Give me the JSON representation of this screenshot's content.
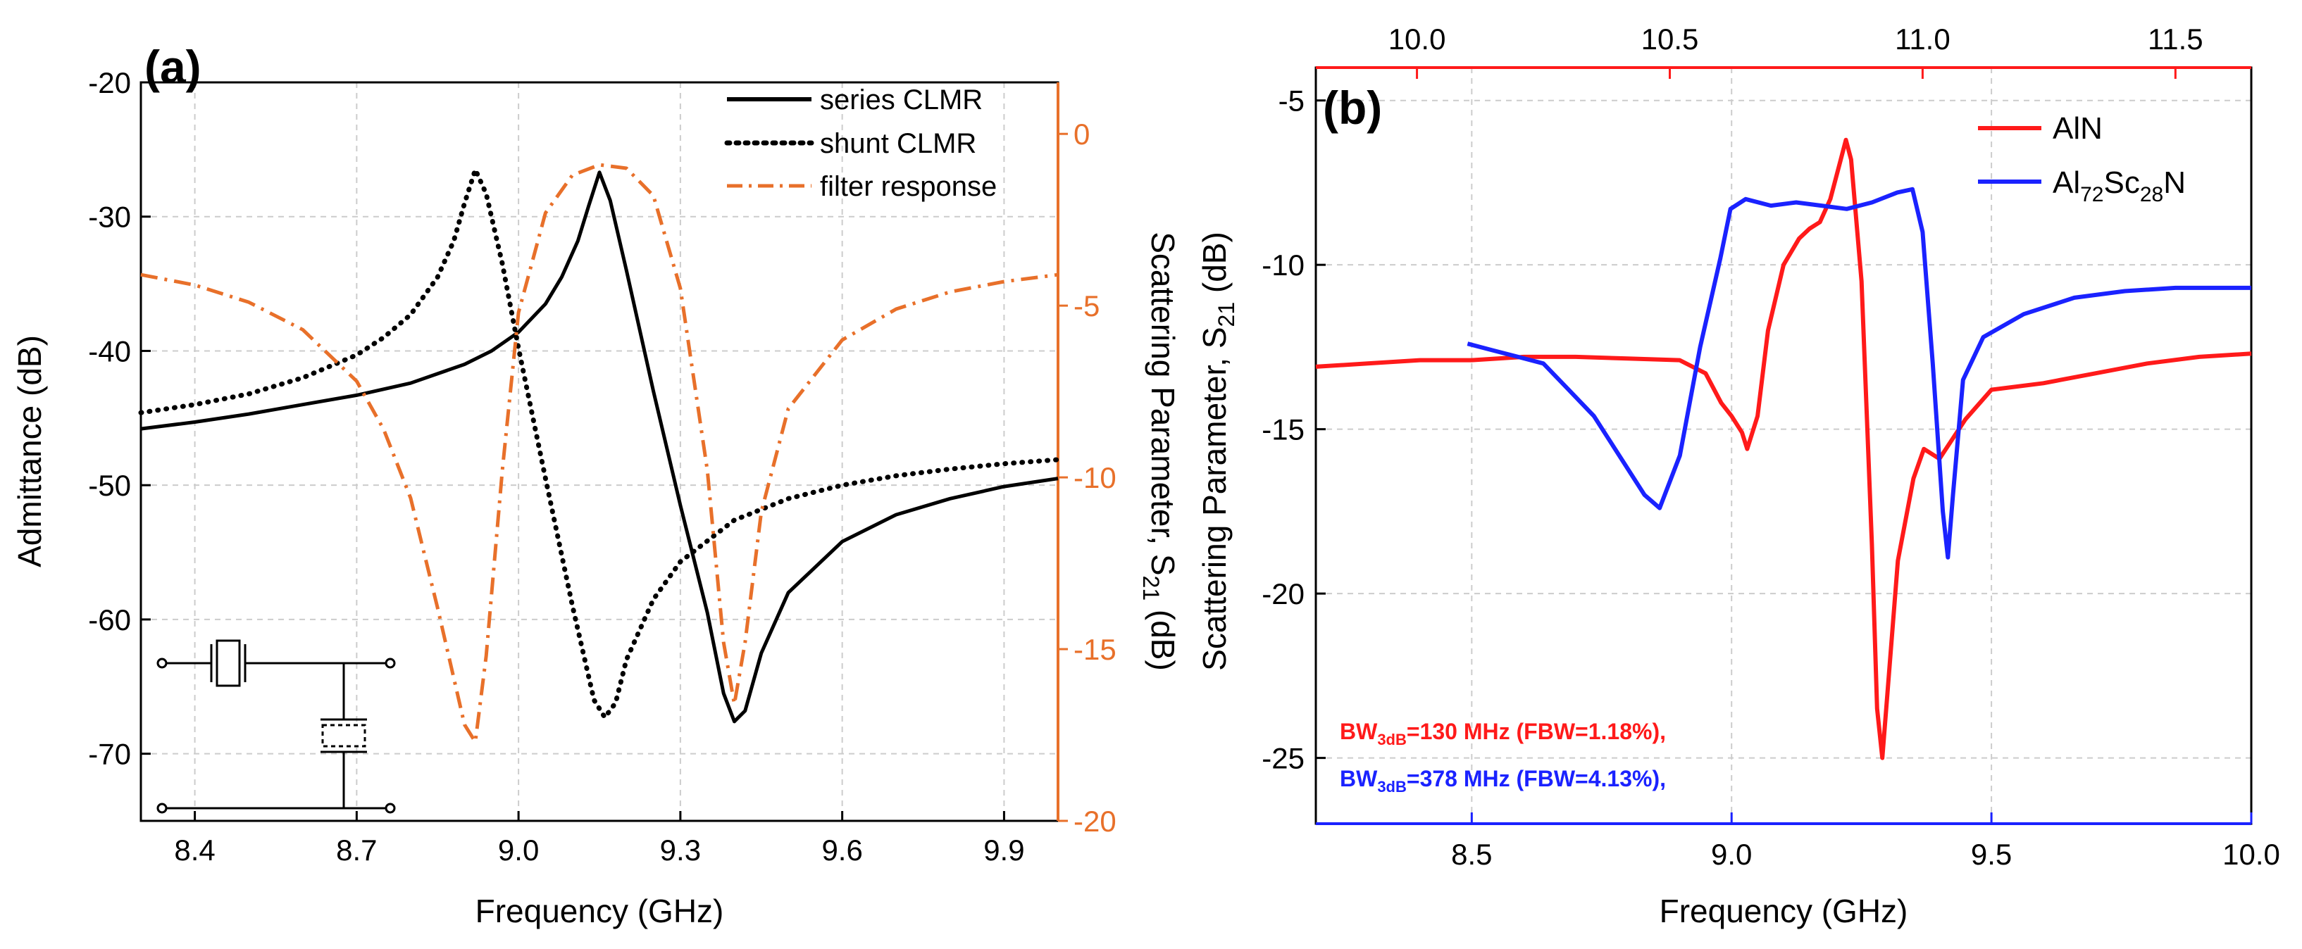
{
  "colors": {
    "series_clmr": "#000000",
    "shunt_clmr": "#000000",
    "filter_response": "#e8702a",
    "aln": "#ff1a1a",
    "alsc": "#1a22ff",
    "grid": "#cccccc"
  },
  "chart_data": [
    {
      "type": "line",
      "panel_label": "(a)",
      "xlabel": "Frequency (GHz)",
      "ylabel_left": "Admittance (dB)",
      "ylabel_right_main": "Scattering Parameter, S",
      "ylabel_right_sub": "21",
      "ylabel_right_tail": " (dB)",
      "xlim": [
        8.3,
        10.0
      ],
      "ylim_left": [
        -75,
        -20
      ],
      "ylim_right": [
        -20,
        1.5
      ],
      "x_ticks": [
        "8.4",
        "8.7",
        "9.0",
        "9.3",
        "9.6",
        "9.9"
      ],
      "y_ticks_left": [
        "-70",
        "-60",
        "-50",
        "-40",
        "-30",
        "-20"
      ],
      "y_ticks_right": [
        "-20",
        "-15",
        "-10",
        "-5",
        "0"
      ],
      "grid": true,
      "legend_position": "top-right",
      "series": [
        {
          "name": "series CLMR",
          "axis": "left",
          "style": "solid",
          "points": [
            [
              8.3,
              -45.8
            ],
            [
              8.4,
              -45.3
            ],
            [
              8.5,
              -44.7
            ],
            [
              8.6,
              -44.0
            ],
            [
              8.7,
              -43.3
            ],
            [
              8.8,
              -42.4
            ],
            [
              8.9,
              -41.0
            ],
            [
              8.95,
              -40.0
            ],
            [
              9.0,
              -38.6
            ],
            [
              9.05,
              -36.5
            ],
            [
              9.08,
              -34.5
            ],
            [
              9.11,
              -31.8
            ],
            [
              9.13,
              -29.2
            ],
            [
              9.15,
              -26.7
            ],
            [
              9.17,
              -28.8
            ],
            [
              9.2,
              -34.0
            ],
            [
              9.25,
              -43.0
            ],
            [
              9.3,
              -51.5
            ],
            [
              9.35,
              -59.5
            ],
            [
              9.38,
              -65.5
            ],
            [
              9.4,
              -67.6
            ],
            [
              9.42,
              -66.8
            ],
            [
              9.45,
              -62.5
            ],
            [
              9.5,
              -58.0
            ],
            [
              9.6,
              -54.2
            ],
            [
              9.7,
              -52.2
            ],
            [
              9.8,
              -51.0
            ],
            [
              9.9,
              -50.1
            ],
            [
              10.0,
              -49.5
            ]
          ]
        },
        {
          "name": "shunt CLMR",
          "axis": "left",
          "style": "dotted",
          "points": [
            [
              8.3,
              -44.6
            ],
            [
              8.4,
              -44.0
            ],
            [
              8.5,
              -43.2
            ],
            [
              8.6,
              -42.0
            ],
            [
              8.7,
              -40.3
            ],
            [
              8.75,
              -39.0
            ],
            [
              8.8,
              -37.3
            ],
            [
              8.85,
              -34.5
            ],
            [
              8.88,
              -31.8
            ],
            [
              8.9,
              -29.0
            ],
            [
              8.92,
              -26.5
            ],
            [
              8.94,
              -28.3
            ],
            [
              8.97,
              -33.5
            ],
            [
              9.0,
              -39.8
            ],
            [
              9.05,
              -49.5
            ],
            [
              9.1,
              -59.0
            ],
            [
              9.14,
              -66.0
            ],
            [
              9.16,
              -67.3
            ],
            [
              9.18,
              -66.2
            ],
            [
              9.2,
              -63.0
            ],
            [
              9.25,
              -58.5
            ],
            [
              9.3,
              -55.7
            ],
            [
              9.4,
              -52.6
            ],
            [
              9.5,
              -51.0
            ],
            [
              9.6,
              -50.0
            ],
            [
              9.7,
              -49.3
            ],
            [
              9.8,
              -48.8
            ],
            [
              9.9,
              -48.4
            ],
            [
              10.0,
              -48.1
            ]
          ]
        },
        {
          "name": "filter response",
          "axis": "right",
          "style": "dashdot",
          "points": [
            [
              8.3,
              -4.1
            ],
            [
              8.4,
              -4.4
            ],
            [
              8.5,
              -4.9
            ],
            [
              8.6,
              -5.7
            ],
            [
              8.7,
              -7.2
            ],
            [
              8.75,
              -8.6
            ],
            [
              8.8,
              -10.6
            ],
            [
              8.85,
              -13.8
            ],
            [
              8.9,
              -17.2
            ],
            [
              8.92,
              -17.7
            ],
            [
              8.94,
              -15.2
            ],
            [
              8.97,
              -9.8
            ],
            [
              9.0,
              -5.2
            ],
            [
              9.05,
              -2.3
            ],
            [
              9.1,
              -1.2
            ],
            [
              9.15,
              -0.9
            ],
            [
              9.2,
              -1.0
            ],
            [
              9.25,
              -1.8
            ],
            [
              9.3,
              -4.5
            ],
            [
              9.35,
              -9.8
            ],
            [
              9.38,
              -14.8
            ],
            [
              9.4,
              -16.6
            ],
            [
              9.42,
              -14.8
            ],
            [
              9.45,
              -11.0
            ],
            [
              9.5,
              -8.0
            ],
            [
              9.6,
              -6.0
            ],
            [
              9.7,
              -5.1
            ],
            [
              9.8,
              -4.6
            ],
            [
              9.9,
              -4.3
            ],
            [
              10.0,
              -4.1
            ]
          ]
        }
      ],
      "inset": "circuit-schematic"
    },
    {
      "type": "line",
      "panel_label": "(b)",
      "xlabel": "Frequency (GHz)",
      "ylabel_main": "Scattering Parameter, S",
      "ylabel_sub": "21",
      "ylabel_tail": " (dB)",
      "xlim_bottom": [
        8.2,
        10.0
      ],
      "xlim_top": [
        9.8,
        11.65
      ],
      "ylim": [
        -27,
        -4
      ],
      "x_ticks_bottom": [
        "8.5",
        "9.0",
        "9.5",
        "10.0"
      ],
      "x_ticks_top": [
        "10.0",
        "10.5",
        "11.0",
        "11.5"
      ],
      "y_ticks": [
        "-25",
        "-20",
        "-15",
        "-10",
        "-5"
      ],
      "grid": true,
      "legend_position": "top-right",
      "series": [
        {
          "name_main": "AlN",
          "axis": "bottom",
          "points": [
            [
              8.2,
              -13.1
            ],
            [
              8.3,
              -13.0
            ],
            [
              8.4,
              -12.9
            ],
            [
              8.5,
              -12.9
            ],
            [
              8.6,
              -12.8
            ],
            [
              8.7,
              -12.8
            ],
            [
              8.8,
              -12.85
            ],
            [
              8.9,
              -12.9
            ],
            [
              8.95,
              -13.3
            ],
            [
              8.98,
              -14.2
            ],
            [
              9.0,
              -14.6
            ],
            [
              9.02,
              -15.1
            ],
            [
              9.03,
              -15.6
            ],
            [
              9.05,
              -14.6
            ],
            [
              9.07,
              -12.0
            ],
            [
              9.1,
              -10.0
            ],
            [
              9.13,
              -9.2
            ],
            [
              9.15,
              -8.9
            ],
            [
              9.17,
              -8.7
            ],
            [
              9.19,
              -8.0
            ],
            [
              9.21,
              -6.8
            ],
            [
              9.22,
              -6.2
            ],
            [
              9.23,
              -6.8
            ],
            [
              9.25,
              -10.5
            ],
            [
              9.27,
              -18.5
            ],
            [
              9.28,
              -23.5
            ],
            [
              9.29,
              -25.0
            ],
            [
              9.3,
              -23.0
            ],
            [
              9.32,
              -19.0
            ],
            [
              9.35,
              -16.5
            ],
            [
              9.37,
              -15.6
            ],
            [
              9.4,
              -15.9
            ],
            [
              9.45,
              -14.7
            ],
            [
              9.5,
              -13.8
            ],
            [
              9.6,
              -13.6
            ],
            [
              9.7,
              -13.3
            ],
            [
              9.8,
              -13.0
            ],
            [
              9.9,
              -12.8
            ],
            [
              10.0,
              -12.7
            ]
          ]
        },
        {
          "name_main": "Al",
          "name_sub1": "72",
          "name_mid": "Sc",
          "name_sub2": "28",
          "name_tail": "N",
          "axis": "top",
          "points": [
            [
              10.1,
              -12.4
            ],
            [
              10.15,
              -12.6
            ],
            [
              10.2,
              -12.8
            ],
            [
              10.25,
              -13.0
            ],
            [
              10.3,
              -13.8
            ],
            [
              10.35,
              -14.6
            ],
            [
              10.4,
              -15.8
            ],
            [
              10.45,
              -17.0
            ],
            [
              10.48,
              -17.4
            ],
            [
              10.52,
              -15.8
            ],
            [
              10.56,
              -12.5
            ],
            [
              10.6,
              -9.8
            ],
            [
              10.62,
              -8.3
            ],
            [
              10.65,
              -8.0
            ],
            [
              10.7,
              -8.2
            ],
            [
              10.75,
              -8.1
            ],
            [
              10.8,
              -8.2
            ],
            [
              10.85,
              -8.3
            ],
            [
              10.9,
              -8.1
            ],
            [
              10.95,
              -7.8
            ],
            [
              10.98,
              -7.7
            ],
            [
              11.0,
              -9.0
            ],
            [
              11.02,
              -13.0
            ],
            [
              11.04,
              -17.5
            ],
            [
              11.05,
              -18.9
            ],
            [
              11.06,
              -17.0
            ],
            [
              11.08,
              -13.5
            ],
            [
              11.12,
              -12.2
            ],
            [
              11.2,
              -11.5
            ],
            [
              11.3,
              -11.0
            ],
            [
              11.4,
              -10.8
            ],
            [
              11.5,
              -10.7
            ],
            [
              11.65,
              -10.7
            ]
          ]
        }
      ],
      "annotations": [
        {
          "pre": "BW",
          "sub": "3dB",
          "post": "=130 MHz (FBW=1.18%),",
          "color": "#ff1a1a"
        },
        {
          "pre": "BW",
          "sub": "3dB",
          "post": "=378 MHz (FBW=4.13%),",
          "color": "#1a22ff"
        }
      ]
    }
  ]
}
